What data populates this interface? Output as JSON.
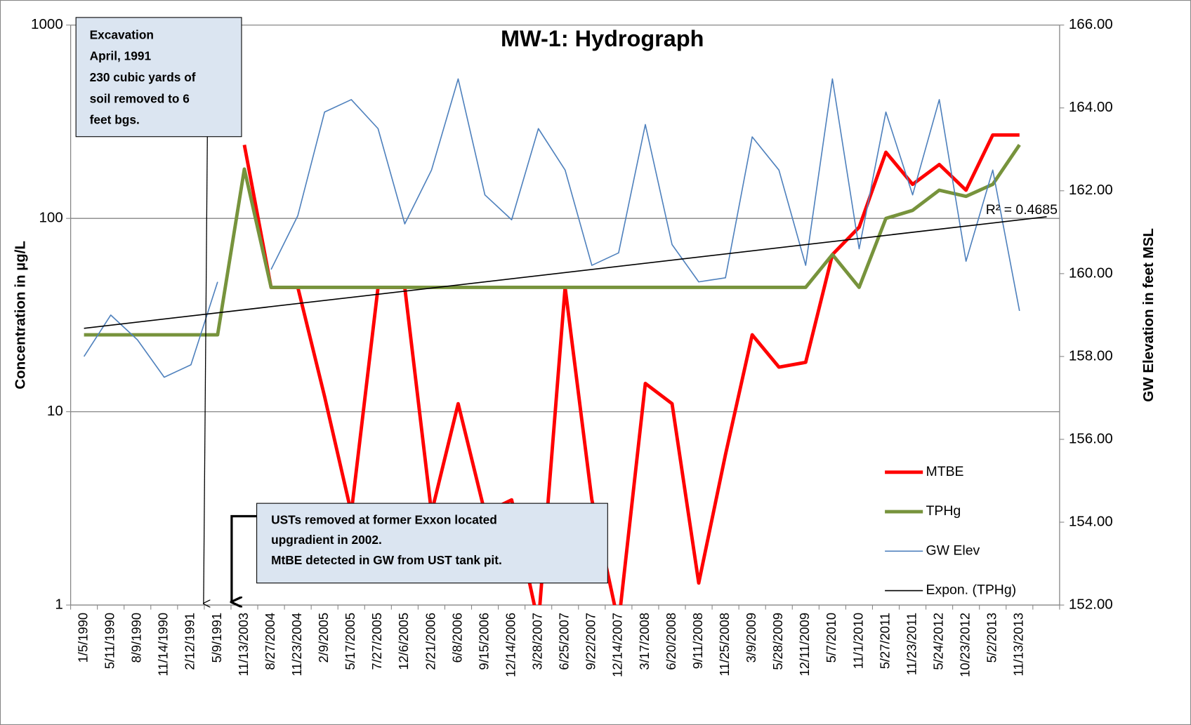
{
  "chart_data": {
    "type": "line",
    "title": "MW-1: Hydrograph",
    "y_label": "Concentration in µg/L",
    "y2_label": "GW Elevation in feet MSL",
    "categories": [
      "1/5/1990",
      "5/11/1990",
      "8/9/1990",
      "11/14/1990",
      "2/12/1991",
      "5/9/1991",
      "11/13/2003",
      "8/27/2004",
      "11/23/2004",
      "2/9/2005",
      "5/17/2005",
      "7/27/2005",
      "12/6/2005",
      "2/21/2006",
      "6/8/2006",
      "9/15/2006",
      "12/14/2006",
      "3/28/2007",
      "6/25/2007",
      "9/22/2007",
      "12/14/2007",
      "3/17/2008",
      "6/20/2008",
      "9/11/2008",
      "11/25/2008",
      "3/9/2009",
      "5/28/2009",
      "12/11/2009",
      "5/7/2010",
      "11/1/2010",
      "5/27/2011",
      "11/23/2011",
      "5/24/2012",
      "10/23/2012",
      "5/2/2013",
      "11/13/2013",
      null
    ],
    "y_log": true,
    "ylim": [
      1,
      1000
    ],
    "yticks": [
      1,
      10,
      100,
      1000
    ],
    "y2lim": [
      152,
      166
    ],
    "y2ticks": [
      {
        "value": 152,
        "label": "152.00"
      },
      {
        "value": 154,
        "label": "154.00"
      },
      {
        "value": 156,
        "label": "156.00"
      },
      {
        "value": 158,
        "label": "158.00"
      },
      {
        "value": 160,
        "label": "160.00"
      },
      {
        "value": 162,
        "label": "162.00"
      },
      {
        "value": 164,
        "label": "164.00"
      },
      {
        "value": 166,
        "label": "166.00"
      }
    ],
    "grid": true,
    "legend": "right",
    "series": [
      {
        "name": "MTBE",
        "color": "#ff0000",
        "width": 4.5,
        "values": [
          null,
          null,
          null,
          null,
          null,
          null,
          240,
          44,
          44,
          12,
          3,
          44,
          44,
          3,
          11,
          3,
          3.5,
          0.8,
          44,
          3.5,
          0.8,
          14,
          11,
          1.3,
          6,
          25,
          17,
          18,
          65,
          90,
          220,
          150,
          190,
          140,
          270,
          270,
          null
        ]
      },
      {
        "name": "TPHg",
        "color": "#77933c",
        "width": 4.5,
        "values": [
          25,
          25,
          25,
          25,
          25,
          25,
          180,
          44,
          44,
          44,
          44,
          44,
          44,
          44,
          44,
          44,
          44,
          44,
          44,
          44,
          44,
          44,
          44,
          44,
          44,
          44,
          44,
          44,
          65,
          44,
          100,
          110,
          140,
          130,
          150,
          240,
          null
        ]
      },
      {
        "name": "GW Elev",
        "color": "#4f81bd",
        "width": 1.5,
        "axis": "y2",
        "values": [
          158.0,
          159.0,
          158.4,
          157.5,
          157.8,
          159.8,
          null,
          160.1,
          161.4,
          163.9,
          164.2,
          163.5,
          161.2,
          162.5,
          164.7,
          161.9,
          161.3,
          163.5,
          162.5,
          160.2,
          160.5,
          163.6,
          160.7,
          159.8,
          159.9,
          163.3,
          162.5,
          160.2,
          164.7,
          160.6,
          163.9,
          161.9,
          164.2,
          160.3,
          162.5,
          159.1,
          null
        ]
      }
    ],
    "trendline": {
      "name": "Expon. (TPHg)",
      "color": "#000000",
      "start": 27,
      "end": 102,
      "r2_label": "R² = 0.4685"
    },
    "annotations": [
      {
        "lines": [
          "Excavation",
          "April, 1991",
          "230 cubic yards of",
          "soil removed to 6",
          "feet bgs."
        ]
      },
      {
        "lines": [
          "USTs removed at former Exxon located",
          "upgradient in 2002.",
          "MtBE detected in GW  from UST tank pit."
        ]
      }
    ]
  }
}
